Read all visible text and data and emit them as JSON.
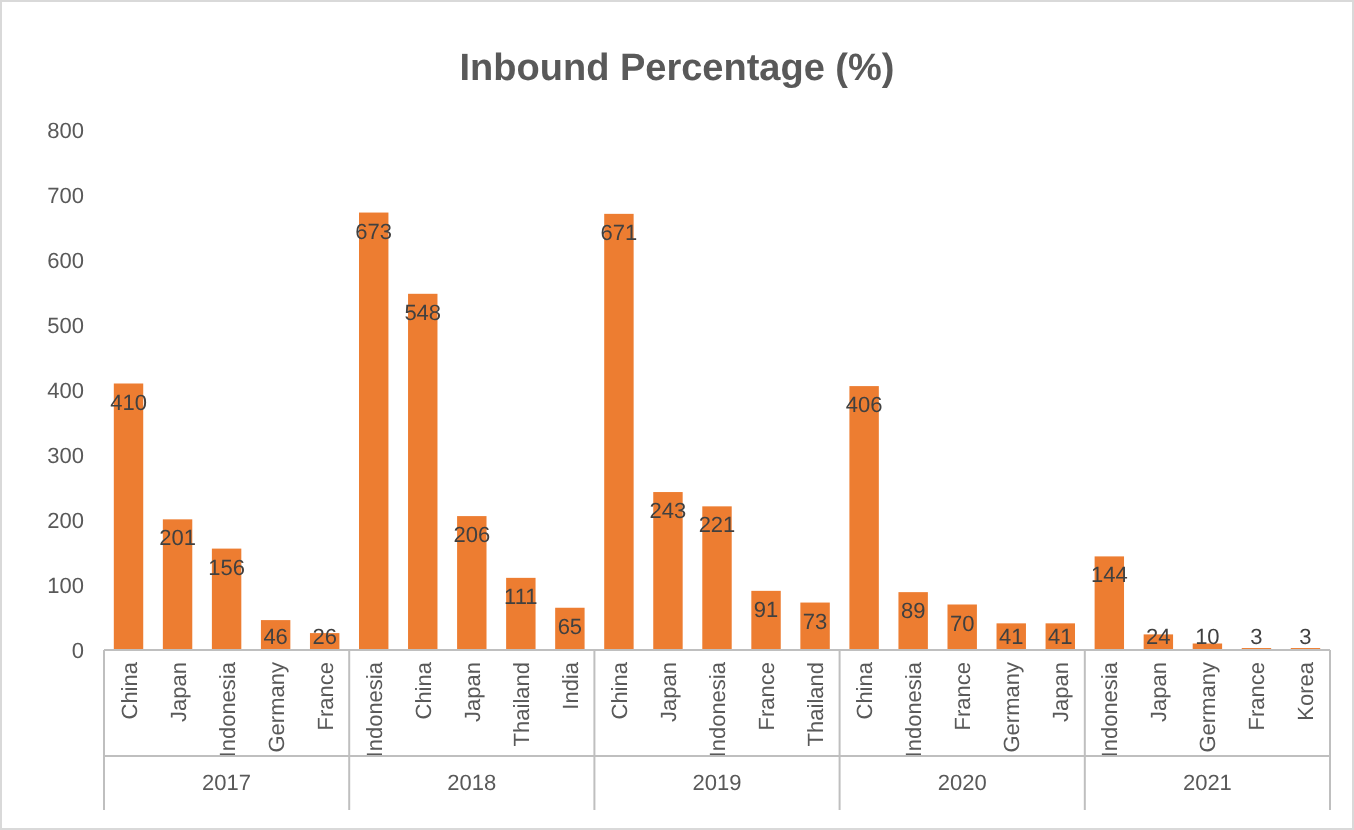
{
  "chart_data": {
    "type": "bar",
    "title": "Inbound Percentage (%)",
    "categories": [
      "China",
      "Japan",
      "Indonesia",
      "Germany",
      "France",
      "Indonesia",
      "China",
      "Japan",
      "Thailand",
      "India",
      "China",
      "Japan",
      "Indonesia",
      "France",
      "Thailand",
      "China",
      "Indonesia",
      "France",
      "Germany",
      "Japan",
      "Indonesia",
      "Japan",
      "Germany",
      "France",
      "Korea"
    ],
    "values": [
      410,
      201,
      156,
      46,
      26,
      673,
      548,
      206,
      111,
      65,
      671,
      243,
      221,
      91,
      73,
      406,
      89,
      70,
      41,
      41,
      144,
      24,
      10,
      3,
      3
    ],
    "color": "#ed7d31",
    "data_labels": true,
    "grid": false,
    "ylim": [
      0,
      800
    ],
    "yticks": [
      0,
      100,
      200,
      300,
      400,
      500,
      600,
      700,
      800
    ],
    "annotations": [
      "2017",
      "2018",
      "2019",
      "2020",
      "2021"
    ]
  }
}
